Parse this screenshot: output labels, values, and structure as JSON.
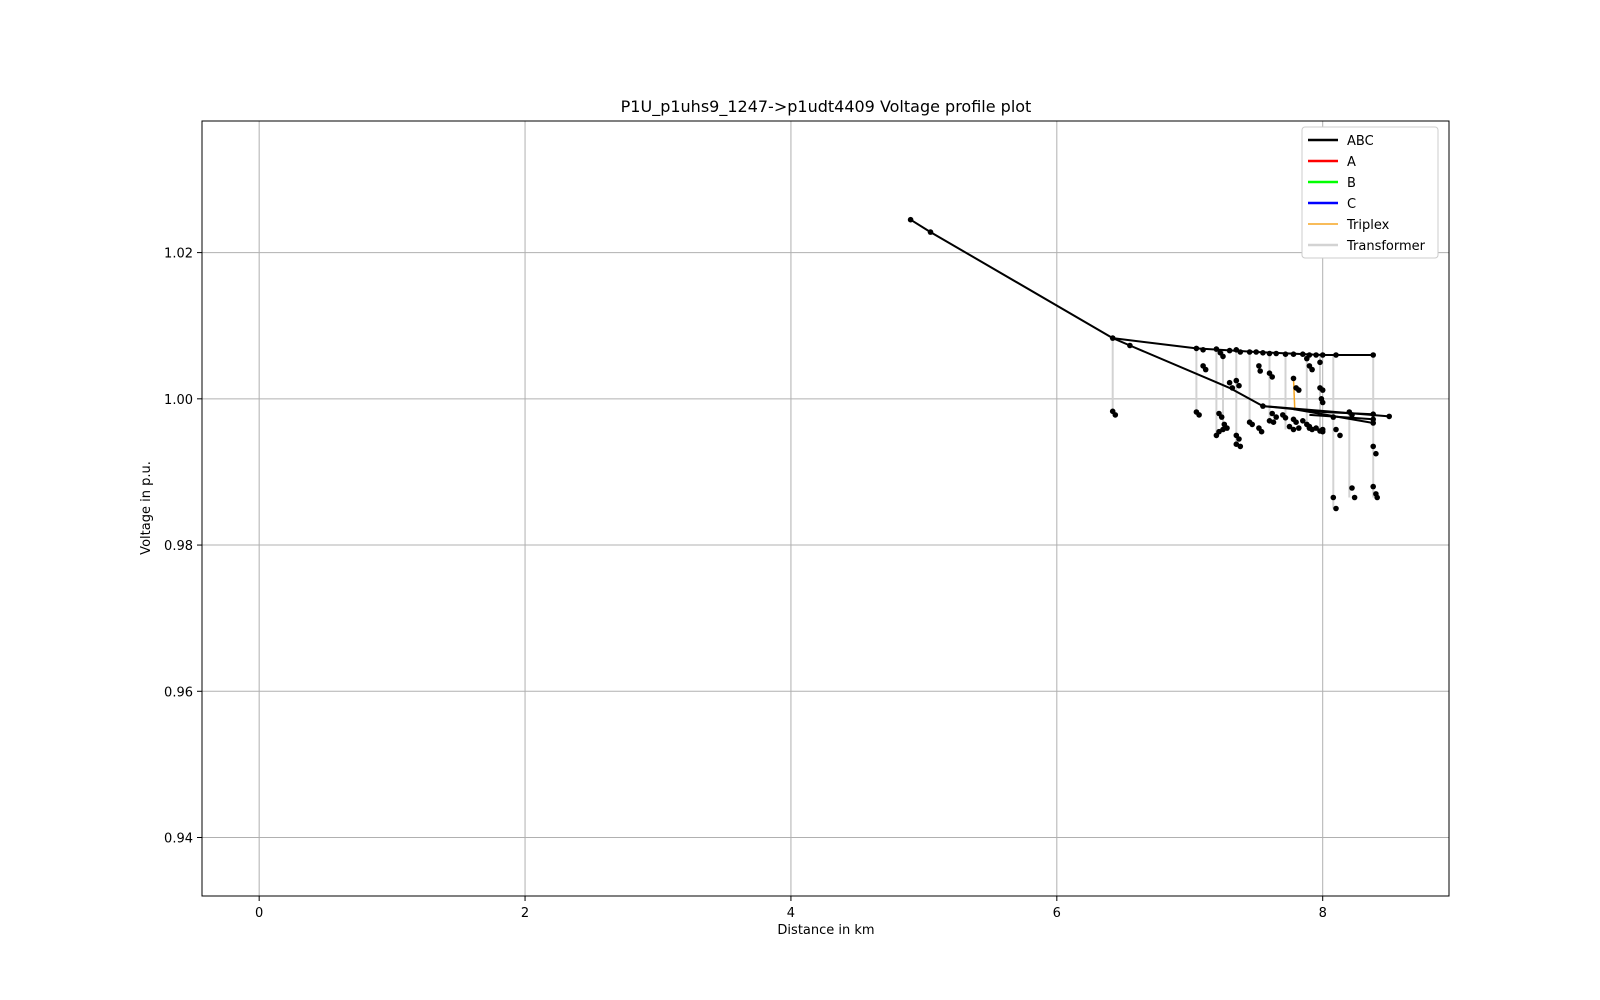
{
  "chart_data": {
    "type": "line",
    "title": "P1U_p1uhs9_1247->p1udt4409 Voltage profile plot",
    "xlabel": "Distance in km",
    "ylabel": "Voltage in p.u.",
    "xlim": [
      -0.43,
      8.95
    ],
    "ylim": [
      0.932,
      1.038
    ],
    "xticks": [
      0,
      2,
      4,
      6,
      8
    ],
    "yticks": [
      0.94,
      0.96,
      0.98,
      1.0,
      1.02
    ],
    "xtick_labels": [
      "0",
      "2",
      "4",
      "6",
      "8"
    ],
    "ytick_labels": [
      "0.94",
      "0.96",
      "0.98",
      "1.00",
      "1.02"
    ],
    "grid": true,
    "legend_position": "top-right",
    "legend": [
      {
        "name": "ABC",
        "color": "#000000"
      },
      {
        "name": "A",
        "color": "#ff0000"
      },
      {
        "name": "B",
        "color": "#00ff00"
      },
      {
        "name": "C",
        "color": "#0000ff"
      },
      {
        "name": "Triplex",
        "color": "#f5a623"
      },
      {
        "name": "Transformer",
        "color": "#d3d3d3"
      }
    ],
    "abc_lines": [
      [
        [
          4.9,
          1.0245
        ],
        [
          5.05,
          1.0228
        ],
        [
          6.42,
          1.0083
        ]
      ],
      [
        [
          6.42,
          1.0083
        ],
        [
          7.05,
          1.0069
        ],
        [
          7.5,
          1.0064
        ],
        [
          8.0,
          1.006
        ],
        [
          8.38,
          1.006
        ]
      ],
      [
        [
          6.42,
          1.0083
        ],
        [
          6.55,
          1.0073
        ],
        [
          7.3,
          1.0015
        ],
        [
          7.55,
          0.999
        ],
        [
          8.0,
          0.9982
        ],
        [
          8.38,
          0.9979
        ]
      ],
      [
        [
          7.55,
          0.999
        ],
        [
          8.5,
          0.9976
        ]
      ],
      [
        [
          7.78,
          0.9986
        ],
        [
          8.38,
          0.9967
        ]
      ],
      [
        [
          7.9,
          0.9978
        ],
        [
          8.38,
          0.9972
        ]
      ]
    ],
    "transformer_lines": [
      [
        [
          6.42,
          1.0083
        ],
        [
          6.42,
          0.9982
        ]
      ],
      [
        [
          7.05,
          1.0069
        ],
        [
          7.05,
          0.998
        ]
      ],
      [
        [
          7.2,
          1.0068
        ],
        [
          7.2,
          0.9952
        ]
      ],
      [
        [
          7.25,
          1.0067
        ],
        [
          7.25,
          0.996
        ]
      ],
      [
        [
          7.35,
          1.0066
        ],
        [
          7.35,
          0.994
        ]
      ],
      [
        [
          7.45,
          1.0065
        ],
        [
          7.45,
          0.9965
        ]
      ],
      [
        [
          7.6,
          1.0064
        ],
        [
          7.6,
          0.997
        ]
      ],
      [
        [
          7.72,
          1.0063
        ],
        [
          7.72,
          0.9958
        ]
      ],
      [
        [
          7.88,
          1.0062
        ],
        [
          7.88,
          0.9962
        ]
      ],
      [
        [
          7.98,
          1.0061
        ],
        [
          7.98,
          0.9958
        ]
      ],
      [
        [
          8.08,
          1.006
        ],
        [
          8.08,
          0.985
        ]
      ],
      [
        [
          8.2,
          0.9982
        ],
        [
          8.2,
          0.9865
        ]
      ],
      [
        [
          8.38,
          1.006
        ],
        [
          8.38,
          0.9865
        ]
      ]
    ],
    "triplex_lines": [
      [
        [
          7.78,
          1.0028
        ],
        [
          7.79,
          0.9985
        ]
      ]
    ],
    "points": [
      [
        4.9,
        1.0245
      ],
      [
        5.05,
        1.0228
      ],
      [
        6.42,
        1.0083
      ],
      [
        6.55,
        1.0073
      ],
      [
        6.42,
        0.9983
      ],
      [
        6.44,
        0.9978
      ],
      [
        7.05,
        1.0069
      ],
      [
        7.1,
        1.0067
      ],
      [
        7.2,
        1.0068
      ],
      [
        7.23,
        1.0063
      ],
      [
        7.25,
        1.0058
      ],
      [
        7.3,
        1.0066
      ],
      [
        7.35,
        1.0067
      ],
      [
        7.38,
        1.0064
      ],
      [
        7.45,
        1.0064
      ],
      [
        7.5,
        1.0064
      ],
      [
        7.55,
        1.0063
      ],
      [
        7.6,
        1.0062
      ],
      [
        7.65,
        1.0062
      ],
      [
        7.72,
        1.0061
      ],
      [
        7.78,
        1.0061
      ],
      [
        7.85,
        1.0061
      ],
      [
        7.9,
        1.006
      ],
      [
        7.95,
        1.006
      ],
      [
        8.0,
        1.006
      ],
      [
        8.1,
        1.006
      ],
      [
        8.38,
        1.006
      ],
      [
        7.88,
        1.0055
      ],
      [
        7.9,
        1.0045
      ],
      [
        7.92,
        1.004
      ],
      [
        7.98,
        1.005
      ],
      [
        7.1,
        1.0045
      ],
      [
        7.12,
        1.004
      ],
      [
        7.3,
        1.0022
      ],
      [
        7.32,
        1.0015
      ],
      [
        7.35,
        1.0025
      ],
      [
        7.37,
        1.0018
      ],
      [
        7.52,
        1.0045
      ],
      [
        7.53,
        1.0038
      ],
      [
        7.6,
        1.0035
      ],
      [
        7.62,
        1.003
      ],
      [
        7.78,
        1.0028
      ],
      [
        7.8,
        1.0015
      ],
      [
        7.82,
        1.0012
      ],
      [
        7.98,
        1.0015
      ],
      [
        8.0,
        1.0012
      ],
      [
        7.99,
        1.0
      ],
      [
        8.0,
        0.9995
      ],
      [
        7.05,
        0.9982
      ],
      [
        7.07,
        0.9978
      ],
      [
        7.22,
        0.998
      ],
      [
        7.24,
        0.9975
      ],
      [
        7.55,
        0.999
      ],
      [
        7.62,
        0.998
      ],
      [
        7.65,
        0.9975
      ],
      [
        7.7,
        0.9978
      ],
      [
        7.72,
        0.9974
      ],
      [
        7.78,
        0.9972
      ],
      [
        7.8,
        0.9968
      ],
      [
        7.85,
        0.997
      ],
      [
        7.9,
        0.9962
      ],
      [
        7.95,
        0.996
      ],
      [
        8.0,
        0.9958
      ],
      [
        8.2,
        0.9982
      ],
      [
        8.22,
        0.9978
      ],
      [
        8.38,
        0.9979
      ],
      [
        8.5,
        0.9976
      ],
      [
        8.38,
        0.9972
      ],
      [
        8.38,
        0.9967
      ],
      [
        8.08,
        0.9975
      ],
      [
        8.1,
        0.9958
      ],
      [
        8.13,
        0.995
      ],
      [
        7.26,
        0.9965
      ],
      [
        7.28,
        0.996
      ],
      [
        7.25,
        0.9958
      ],
      [
        7.22,
        0.9955
      ],
      [
        7.2,
        0.995
      ],
      [
        7.35,
        0.995
      ],
      [
        7.37,
        0.9945
      ],
      [
        7.35,
        0.9938
      ],
      [
        7.38,
        0.9935
      ],
      [
        7.45,
        0.9968
      ],
      [
        7.47,
        0.9965
      ],
      [
        7.52,
        0.996
      ],
      [
        7.54,
        0.9955
      ],
      [
        7.6,
        0.997
      ],
      [
        7.63,
        0.9968
      ],
      [
        7.75,
        0.9962
      ],
      [
        7.78,
        0.9958
      ],
      [
        7.82,
        0.996
      ],
      [
        7.88,
        0.9965
      ],
      [
        7.9,
        0.996
      ],
      [
        7.92,
        0.9958
      ],
      [
        7.98,
        0.9956
      ],
      [
        8.0,
        0.9955
      ],
      [
        8.38,
        0.9935
      ],
      [
        8.4,
        0.9925
      ],
      [
        8.08,
        0.9865
      ],
      [
        8.1,
        0.985
      ],
      [
        8.22,
        0.9878
      ],
      [
        8.24,
        0.9865
      ],
      [
        8.38,
        0.988
      ],
      [
        8.4,
        0.987
      ],
      [
        8.41,
        0.9865
      ]
    ]
  }
}
